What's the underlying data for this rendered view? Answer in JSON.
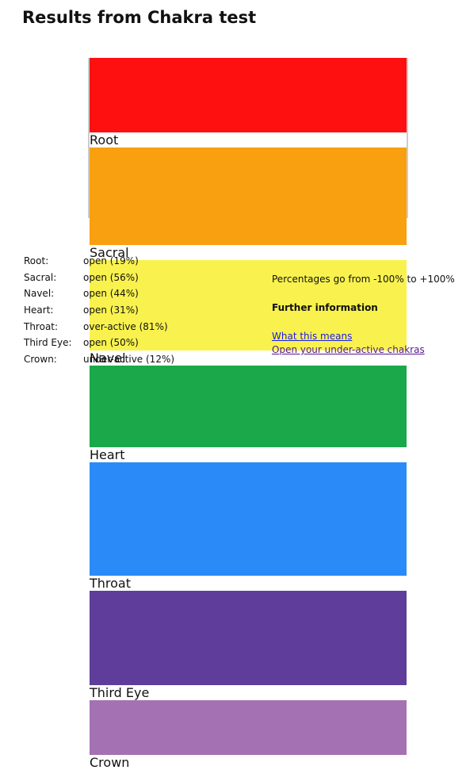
{
  "title": "Results from Chakra test",
  "chart_data": {
    "type": "bar",
    "categories": [
      "Root",
      "Sacral",
      "Navel",
      "Heart",
      "Throat",
      "Third Eye",
      "Crown"
    ],
    "values": [
      19,
      56,
      44,
      31,
      81,
      50,
      -12
    ],
    "colors": [
      "#ff1010",
      "#f8a010",
      "#f9f24e",
      "#1aa84a",
      "#2a8bf8",
      "#5e3e9a",
      "#a472b3"
    ],
    "ylim": [
      -100,
      100
    ]
  },
  "table": {
    "rows": [
      [
        "Root:",
        "open (19%)"
      ],
      [
        "Sacral:",
        "open (56%)"
      ],
      [
        "Navel:",
        "open (44%)"
      ],
      [
        "Heart:",
        "open (31%)"
      ],
      [
        "Throat:",
        "over-active (81%)"
      ],
      [
        "Third Eye:",
        "open (50%)"
      ],
      [
        "Crown:",
        "under-active (12%)"
      ]
    ]
  },
  "note": "Percentages go from -100% to +100%",
  "further_heading": "Further information",
  "links": [
    "What this means",
    "Open your under-active chakras"
  ]
}
